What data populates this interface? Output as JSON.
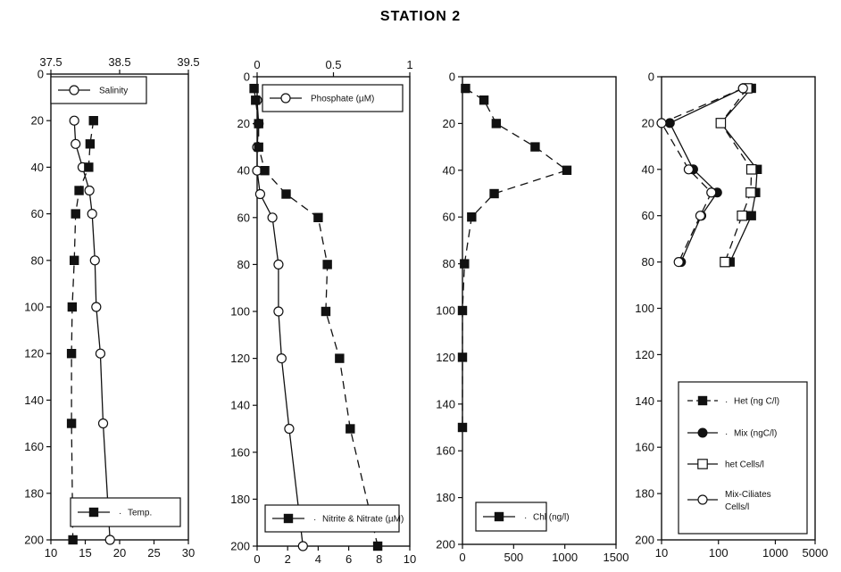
{
  "title": "STATION 2",
  "chart_data": [
    {
      "type": "line",
      "panel": "salinity-temperature",
      "y_axis": {
        "range": [
          0,
          200
        ],
        "inverted": true,
        "ticks": [
          0,
          20,
          40,
          60,
          80,
          100,
          120,
          140,
          160,
          180,
          200
        ]
      },
      "top_axis": {
        "range": [
          37.5,
          39.5
        ],
        "ticks": [
          37.5,
          38.5,
          39.5
        ],
        "tick_labels": [
          "37.5",
          "38.5",
          "39.5"
        ]
      },
      "bottom_axis": {
        "range": [
          10,
          30
        ],
        "ticks": [
          10,
          15,
          20,
          25,
          30
        ]
      },
      "series": [
        {
          "name": "Salinity",
          "axis": "top",
          "marker": "open-circle",
          "line": "solid",
          "points": [
            [
              37.84,
              20
            ],
            [
              37.86,
              30
            ],
            [
              37.96,
              40
            ],
            [
              38.06,
              50
            ],
            [
              38.1,
              60
            ],
            [
              38.14,
              80
            ],
            [
              38.16,
              100
            ],
            [
              38.22,
              120
            ],
            [
              38.26,
              150
            ],
            [
              38.36,
              200
            ]
          ]
        },
        {
          "name": "Temp.",
          "axis": "bottom",
          "marker": "filled-square",
          "line": "dashed",
          "points": [
            [
              16.2,
              20
            ],
            [
              15.7,
              30
            ],
            [
              15.5,
              40
            ],
            [
              14.1,
              50
            ],
            [
              13.6,
              60
            ],
            [
              13.4,
              80
            ],
            [
              13.1,
              100
            ],
            [
              13.0,
              120
            ],
            [
              13.0,
              150
            ],
            [
              13.2,
              200
            ]
          ]
        }
      ],
      "legend": [
        {
          "label": "Salinity",
          "placement": "top-left",
          "marker": "open-circle"
        },
        {
          "label": "Temp.",
          "placement": "bottom",
          "marker": "filled-square",
          "dot": true
        }
      ]
    },
    {
      "type": "line",
      "panel": "phosphate-nitrate",
      "y_axis": {
        "range": [
          0,
          200
        ],
        "inverted": true,
        "ticks": [
          0,
          20,
          40,
          60,
          80,
          100,
          120,
          140,
          160,
          180,
          200
        ]
      },
      "top_axis": {
        "range": [
          0,
          1
        ],
        "ticks": [
          0,
          0.5,
          1
        ],
        "tick_labels": [
          "0",
          "0.5",
          "1"
        ]
      },
      "bottom_axis": {
        "range": [
          0,
          10
        ],
        "ticks": [
          0,
          2,
          4,
          6,
          8,
          10
        ]
      },
      "series": [
        {
          "name": "Phosphate (µM)",
          "axis": "top",
          "marker": "open-circle",
          "line": "solid",
          "points": [
            [
              0.0,
              10
            ],
            [
              0.01,
              20
            ],
            [
              0.0,
              30
            ],
            [
              0.0,
              40
            ],
            [
              0.02,
              50
            ],
            [
              0.1,
              60
            ],
            [
              0.14,
              80
            ],
            [
              0.14,
              100
            ],
            [
              0.16,
              120
            ],
            [
              0.21,
              150
            ],
            [
              0.3,
              200
            ]
          ]
        },
        {
          "name": "Nitrite & Nitrate (µM)",
          "axis": "bottom",
          "marker": "filled-square",
          "line": "dashed",
          "points": [
            [
              -0.2,
              5
            ],
            [
              -0.1,
              10
            ],
            [
              0.1,
              20
            ],
            [
              0.1,
              30
            ],
            [
              0.5,
              40
            ],
            [
              1.9,
              50
            ],
            [
              4.0,
              60
            ],
            [
              4.6,
              80
            ],
            [
              4.5,
              100
            ],
            [
              5.4,
              120
            ],
            [
              6.1,
              150
            ],
            [
              7.9,
              200
            ]
          ]
        }
      ],
      "legend": [
        {
          "label": "Phosphate (µM)",
          "placement": "top-left",
          "marker": "open-circle"
        },
        {
          "label": "Nitrite & Nitrate (µM)",
          "placement": "bottom",
          "marker": "filled-square",
          "dot": true
        }
      ]
    },
    {
      "type": "line",
      "panel": "chlorophyll",
      "y_axis": {
        "range": [
          0,
          200
        ],
        "inverted": true,
        "ticks": [
          0,
          20,
          40,
          60,
          80,
          100,
          120,
          140,
          160,
          180,
          200
        ]
      },
      "bottom_axis": {
        "range": [
          0,
          1500
        ],
        "ticks": [
          0,
          500,
          1000,
          1500
        ]
      },
      "series": [
        {
          "name": "Chl (ng/l)",
          "axis": "bottom",
          "marker": "filled-square",
          "line": "dashed",
          "points": [
            [
              30,
              5
            ],
            [
              210,
              10
            ],
            [
              330,
              20
            ],
            [
              710,
              30
            ],
            [
              1020,
              40
            ],
            [
              310,
              50
            ],
            [
              90,
              60
            ],
            [
              20,
              80
            ],
            [
              0,
              100
            ],
            [
              0,
              120
            ],
            [
              0,
              150
            ]
          ]
        }
      ],
      "legend": [
        {
          "label": "Chl (ng/l)",
          "placement": "bottom-left",
          "marker": "filled-square",
          "dot": true
        }
      ]
    },
    {
      "type": "line",
      "panel": "ciliates",
      "y_axis": {
        "range": [
          0,
          200
        ],
        "inverted": true,
        "ticks": [
          0,
          20,
          40,
          60,
          80,
          100,
          120,
          140,
          160,
          180,
          200
        ]
      },
      "bottom_axis": {
        "scale": "log",
        "range": [
          10,
          5000
        ],
        "ticks": [
          10,
          100,
          1000,
          5000
        ]
      },
      "series": [
        {
          "name": "Het (ng C/l)",
          "marker": "filled-square",
          "line": "solid",
          "points": [
            [
              380,
              5
            ],
            [
              110,
              20
            ],
            [
              480,
              40
            ],
            [
              450,
              50
            ],
            [
              380,
              60
            ],
            [
              160,
              80
            ]
          ]
        },
        {
          "name": "Mix (ngC/l)",
          "marker": "filled-circle",
          "line": "solid",
          "points": [
            [
              270,
              5
            ],
            [
              14,
              20
            ],
            [
              36,
              40
            ],
            [
              95,
              50
            ],
            [
              50,
              60
            ],
            [
              22,
              80
            ]
          ]
        },
        {
          "name": "het Cells/l",
          "marker": "open-square",
          "line": "dashed",
          "points": [
            [
              320,
              5
            ],
            [
              110,
              20
            ],
            [
              380,
              40
            ],
            [
              370,
              50
            ],
            [
              260,
              60
            ],
            [
              130,
              80
            ]
          ]
        },
        {
          "name": "Mix-Ciliates Cells/l",
          "marker": "open-circle",
          "line": "dashed",
          "points": [
            [
              270,
              5
            ],
            [
              10,
              20
            ],
            [
              30,
              40
            ],
            [
              75,
              50
            ],
            [
              48,
              60
            ],
            [
              20,
              80
            ]
          ]
        }
      ],
      "legend": [
        {
          "label": "Het (ng C/l)",
          "marker": "filled-square",
          "dot": true
        },
        {
          "label": "Mix (ngC/l)",
          "marker": "filled-circle",
          "dot": true
        },
        {
          "label": "het Cells/l",
          "marker": "open-square",
          "dot": false
        },
        {
          "label": "Mix-Ciliates Cells/l",
          "marker": "open-circle",
          "dot": false,
          "lines": [
            "Mix-Ciliates",
            "Cells/l"
          ]
        }
      ]
    }
  ]
}
